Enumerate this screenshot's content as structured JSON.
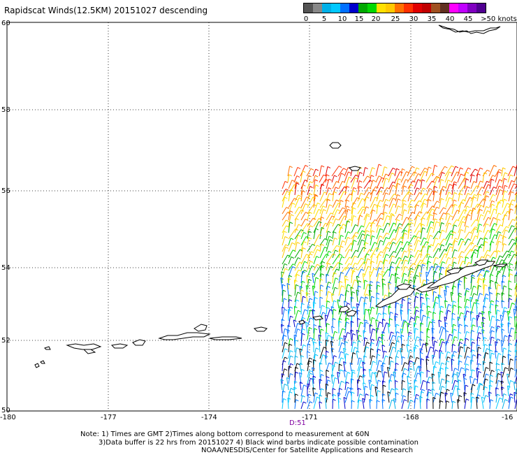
{
  "title": "Rapidscat Winds(12.5KM) 20151027 descending",
  "legend": {
    "colors": [
      "#555555",
      "#888888",
      "#00b0e8",
      "#00c8ff",
      "#0070ff",
      "#0000cc",
      "#00a800",
      "#00d800",
      "#ffe000",
      "#ffc800",
      "#ff7000",
      "#ff3000",
      "#e00000",
      "#c00000",
      "#a05020",
      "#603020",
      "#ff00ff",
      "#c000ff",
      "#8000c0",
      "#500090"
    ],
    "labels": [
      "0",
      "5",
      "10",
      "15",
      "20",
      "25",
      "30",
      "35",
      "40",
      "45",
      ">50 knots"
    ]
  },
  "axes": {
    "lat_labels": [
      "60",
      "58",
      "56",
      "54",
      "52",
      "50"
    ],
    "lon_labels": [
      "-180",
      "-177",
      "-174",
      "-171",
      "-168",
      "-16"
    ]
  },
  "swath": {
    "time_label": "D:51",
    "time_color": "#8000a0"
  },
  "notes": {
    "line1": "Note: 1) Times are GMT 2)Times along bottom correspond to measurement at 60N",
    "line2": "3)Data buffer is 22 hrs from 20151027 4) Black wind barbs indicate possible contamination",
    "line3": "NOAA/NESDIS/Center for Satellite Applications and Research"
  }
}
